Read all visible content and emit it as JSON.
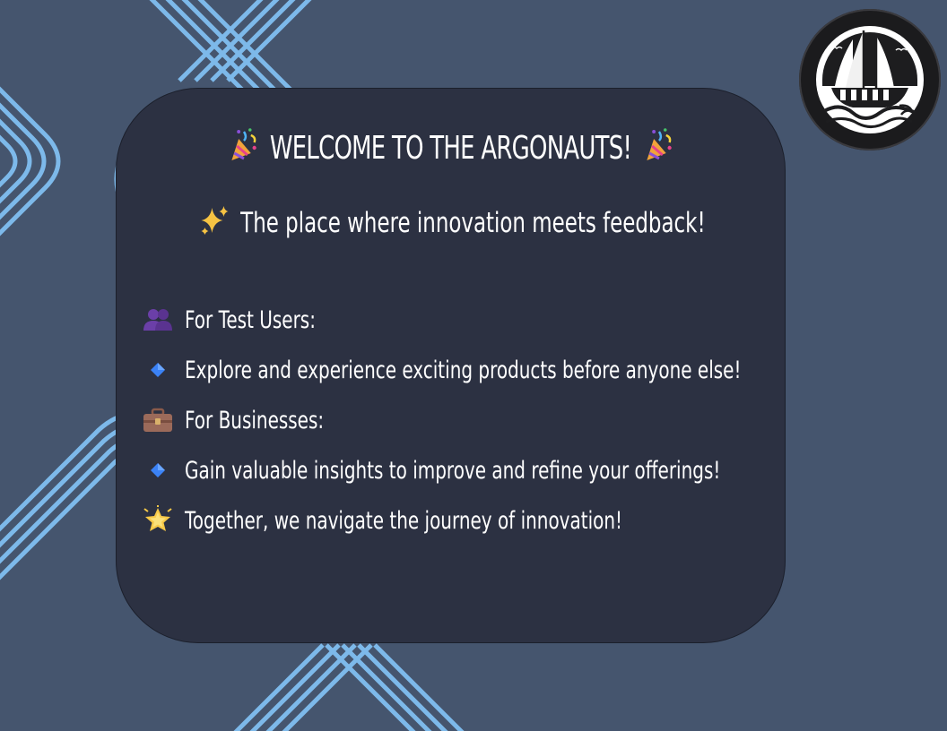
{
  "welcome": {
    "title_icon": "party-popper-icon",
    "title": "WELCOME TO THE ARGONAUTS!",
    "subtitle_icon": "sparkles-icon",
    "subtitle": "The place where innovation meets feedback!"
  },
  "items": [
    {
      "icon": "people-icon",
      "text": "For Test Users:"
    },
    {
      "icon": "blue-diamond-icon",
      "text": "Explore and experience exciting products before anyone else!"
    },
    {
      "icon": "briefcase-icon",
      "text": "For Businesses:"
    },
    {
      "icon": "blue-diamond-icon",
      "text": "Gain valuable insights to improve and refine your offerings!"
    },
    {
      "icon": "glowing-star-icon",
      "text": "Together, we navigate the journey of innovation!"
    }
  ],
  "logo": {
    "icon": "ship-logo-icon"
  },
  "colors": {
    "background": "#45556e",
    "card": "#2c3142",
    "lines": "#7db9ea",
    "text": "#ffffff",
    "diamond": "#3b82f6"
  }
}
